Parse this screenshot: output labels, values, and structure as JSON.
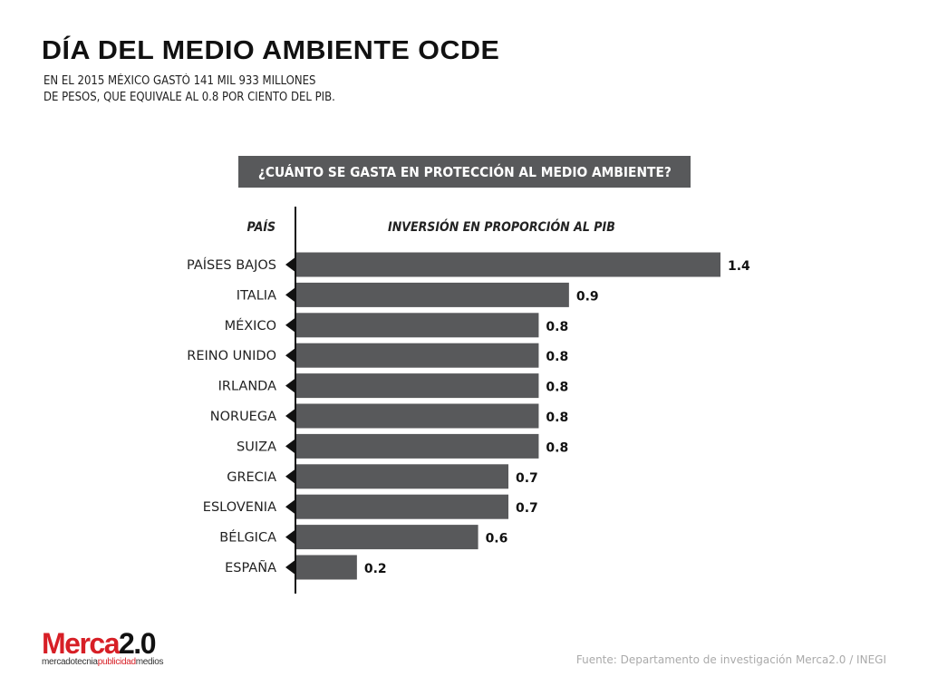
{
  "title": "DÍA DEL MEDIO AMBIENTE OCDE",
  "subtitle_lines": [
    "EN EL 2015 MÉXICO GASTÓ 141 MIL 933 MILLONES",
    "DE PESOS, QUE EQUIVALE AL 0.8 POR CIENTO DEL PIB."
  ],
  "question": "¿CUÁNTO SE GASTA EN PROTECCIÓN AL MEDIO AMBIENTE?",
  "source": "Fuente: Departamento de investigación Merca2.0 / INEGI",
  "logo": {
    "merca": "Merca",
    "version": "2.0",
    "tag1": "mercadotecnia",
    "tag2": "publicidad",
    "tag3": "medios"
  },
  "colors": {
    "bar": "#58595b",
    "brand_red": "#d71f26",
    "header_box": "#58595b"
  },
  "chart_data": {
    "type": "bar",
    "orientation": "horizontal",
    "xlabel": "INVERSIÓN EN PROPORCIÓN AL PIB",
    "ylabel": "PAÍS",
    "categories": [
      "PAÍSES BAJOS",
      "ITALIA",
      "MÉXICO",
      "REINO UNIDO",
      "IRLANDA",
      "NORUEGA",
      "SUIZA",
      "GRECIA",
      "ESLOVENIA",
      "BÉLGICA",
      "ESPAÑA"
    ],
    "values": [
      1.4,
      0.9,
      0.8,
      0.8,
      0.8,
      0.8,
      0.8,
      0.7,
      0.7,
      0.6,
      0.2
    ],
    "xlim": [
      0,
      1.4
    ],
    "grid": false
  }
}
